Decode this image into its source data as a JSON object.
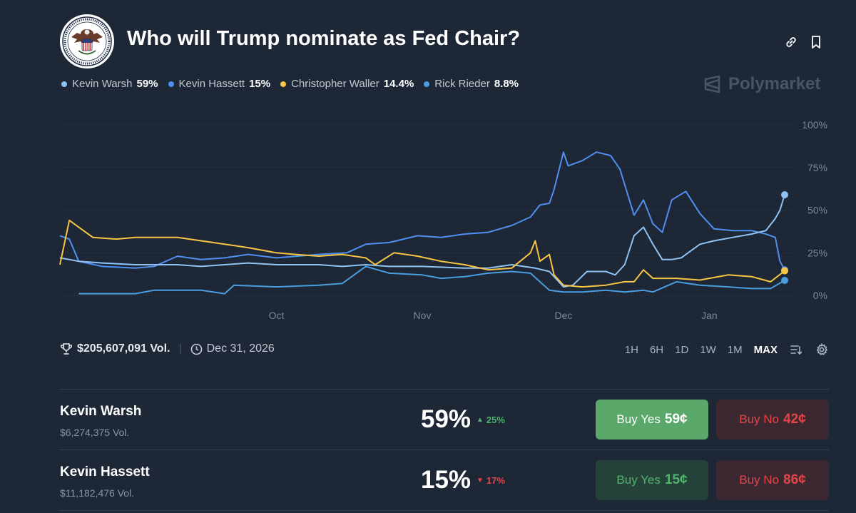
{
  "market": {
    "title": "Who will Trump nominate as Fed Chair?",
    "brand": "Polymarket",
    "volume": "$205,607,091 Vol.",
    "end_date": "Dec 31, 2026"
  },
  "legend": [
    {
      "name": "Kevin Warsh",
      "pct": "59%",
      "color": "#8fc3f5"
    },
    {
      "name": "Kevin Hassett",
      "pct": "15%",
      "color": "#4f8ff0"
    },
    {
      "name": "Christopher Waller",
      "pct": "14.4%",
      "color": "#f7c545"
    },
    {
      "name": "Rick Rieder",
      "pct": "8.8%",
      "color": "#4a9ee0"
    }
  ],
  "ranges": [
    "1H",
    "6H",
    "1D",
    "1W",
    "1M",
    "MAX"
  ],
  "active_range": "MAX",
  "outcomes": [
    {
      "name": "Kevin Warsh",
      "volume": "$6,274,375 Vol.",
      "pct": "59%",
      "change": "25%",
      "direction": "up",
      "yes_label": "Buy Yes",
      "yes_price": "59¢",
      "no_label": "Buy No",
      "no_price": "42¢"
    },
    {
      "name": "Kevin Hassett",
      "volume": "$11,182,476 Vol.",
      "pct": "15%",
      "change": "17%",
      "direction": "down",
      "yes_label": "Buy Yes",
      "yes_price": "15¢",
      "no_label": "Buy No",
      "no_price": "86¢"
    }
  ],
  "chart_data": {
    "type": "line",
    "ylim": [
      0,
      100
    ],
    "y_ticks": [
      "0%",
      "25%",
      "50%",
      "75%",
      "100%"
    ],
    "x_ticks": [
      {
        "label": "Oct",
        "date": "2025-10-01"
      },
      {
        "label": "Nov",
        "date": "2025-11-01"
      },
      {
        "label": "Dec",
        "date": "2025-12-01"
      },
      {
        "label": "Jan",
        "date": "2026-01-01"
      }
    ],
    "grid": true,
    "series": [
      {
        "name": "Kevin Hassett",
        "color": "#4f8ff0",
        "points": [
          [
            "2025-08-16",
            35
          ],
          [
            "2025-08-18",
            33
          ],
          [
            "2025-08-20",
            20
          ],
          [
            "2025-08-25",
            17
          ],
          [
            "2025-09-01",
            16
          ],
          [
            "2025-09-05",
            17
          ],
          [
            "2025-09-10",
            23
          ],
          [
            "2025-09-15",
            21
          ],
          [
            "2025-09-20",
            22
          ],
          [
            "2025-09-25",
            24
          ],
          [
            "2025-10-01",
            22
          ],
          [
            "2025-10-10",
            24
          ],
          [
            "2025-10-16",
            25
          ],
          [
            "2025-10-20",
            30
          ],
          [
            "2025-10-25",
            31
          ],
          [
            "2025-10-31",
            35
          ],
          [
            "2025-11-05",
            34
          ],
          [
            "2025-11-10",
            36
          ],
          [
            "2025-11-15",
            37
          ],
          [
            "2025-11-20",
            41
          ],
          [
            "2025-11-24",
            46
          ],
          [
            "2025-11-26",
            53
          ],
          [
            "2025-11-28",
            54
          ],
          [
            "2025-11-29",
            62
          ],
          [
            "2025-12-01",
            84
          ],
          [
            "2025-12-02",
            76
          ],
          [
            "2025-12-05",
            79
          ],
          [
            "2025-12-08",
            84
          ],
          [
            "2025-12-11",
            82
          ],
          [
            "2025-12-13",
            74
          ],
          [
            "2025-12-14",
            65
          ],
          [
            "2025-12-16",
            47
          ],
          [
            "2025-12-18",
            56
          ],
          [
            "2025-12-20",
            42
          ],
          [
            "2025-12-22",
            37
          ],
          [
            "2025-12-24",
            56
          ],
          [
            "2025-12-27",
            61
          ],
          [
            "2025-12-30",
            48
          ],
          [
            "2026-01-02",
            39
          ],
          [
            "2026-01-06",
            38
          ],
          [
            "2026-01-10",
            38
          ],
          [
            "2026-01-13",
            36
          ],
          [
            "2026-01-15",
            34
          ],
          [
            "2026-01-16",
            20
          ],
          [
            "2026-01-17",
            15
          ]
        ]
      },
      {
        "name": "Kevin Warsh",
        "color": "#8fc3f5",
        "points": [
          [
            "2025-08-16",
            22
          ],
          [
            "2025-08-20",
            20
          ],
          [
            "2025-08-25",
            19
          ],
          [
            "2025-09-01",
            18
          ],
          [
            "2025-09-10",
            18
          ],
          [
            "2025-09-15",
            17
          ],
          [
            "2025-09-20",
            18
          ],
          [
            "2025-09-25",
            19
          ],
          [
            "2025-10-01",
            18
          ],
          [
            "2025-10-10",
            18
          ],
          [
            "2025-10-15",
            17
          ],
          [
            "2025-10-20",
            18
          ],
          [
            "2025-10-25",
            17
          ],
          [
            "2025-11-01",
            17
          ],
          [
            "2025-11-10",
            16
          ],
          [
            "2025-11-15",
            16
          ],
          [
            "2025-11-20",
            18
          ],
          [
            "2025-11-25",
            16
          ],
          [
            "2025-11-28",
            14
          ],
          [
            "2025-12-01",
            5
          ],
          [
            "2025-12-03",
            6
          ],
          [
            "2025-12-06",
            14
          ],
          [
            "2025-12-10",
            14
          ],
          [
            "2025-12-12",
            12
          ],
          [
            "2025-12-14",
            18
          ],
          [
            "2025-12-16",
            35
          ],
          [
            "2025-12-18",
            40
          ],
          [
            "2025-12-20",
            30
          ],
          [
            "2025-12-22",
            21
          ],
          [
            "2025-12-24",
            21
          ],
          [
            "2025-12-26",
            22
          ],
          [
            "2025-12-30",
            30
          ],
          [
            "2026-01-02",
            32
          ],
          [
            "2026-01-06",
            34
          ],
          [
            "2026-01-10",
            36
          ],
          [
            "2026-01-13",
            38
          ],
          [
            "2026-01-15",
            45
          ],
          [
            "2026-01-16",
            50
          ],
          [
            "2026-01-17",
            59
          ]
        ]
      },
      {
        "name": "Christopher Waller",
        "color": "#f7c545",
        "points": [
          [
            "2025-08-16",
            18
          ],
          [
            "2025-08-18",
            44
          ],
          [
            "2025-08-20",
            40
          ],
          [
            "2025-08-23",
            34
          ],
          [
            "2025-08-28",
            33
          ],
          [
            "2025-09-01",
            34
          ],
          [
            "2025-09-05",
            34
          ],
          [
            "2025-09-10",
            34
          ],
          [
            "2025-09-15",
            32
          ],
          [
            "2025-09-20",
            30
          ],
          [
            "2025-09-25",
            28
          ],
          [
            "2025-10-01",
            25
          ],
          [
            "2025-10-05",
            24
          ],
          [
            "2025-10-10",
            23
          ],
          [
            "2025-10-15",
            24
          ],
          [
            "2025-10-20",
            22
          ],
          [
            "2025-10-22",
            18
          ],
          [
            "2025-10-26",
            25
          ],
          [
            "2025-10-31",
            23
          ],
          [
            "2025-11-05",
            20
          ],
          [
            "2025-11-10",
            18
          ],
          [
            "2025-11-15",
            15
          ],
          [
            "2025-11-20",
            16
          ],
          [
            "2025-11-24",
            25
          ],
          [
            "2025-11-25",
            32
          ],
          [
            "2025-11-26",
            20
          ],
          [
            "2025-11-28",
            24
          ],
          [
            "2025-11-29",
            12
          ],
          [
            "2025-12-01",
            6
          ],
          [
            "2025-12-05",
            5
          ],
          [
            "2025-12-10",
            6
          ],
          [
            "2025-12-14",
            8
          ],
          [
            "2025-12-16",
            8
          ],
          [
            "2025-12-18",
            15
          ],
          [
            "2025-12-20",
            10
          ],
          [
            "2025-12-25",
            10
          ],
          [
            "2025-12-30",
            9
          ],
          [
            "2026-01-05",
            12
          ],
          [
            "2026-01-10",
            11
          ],
          [
            "2026-01-14",
            8
          ],
          [
            "2026-01-17",
            14.4
          ]
        ]
      },
      {
        "name": "Rick Rieder",
        "color": "#4a9ee0",
        "points": [
          [
            "2025-08-20",
            1
          ],
          [
            "2025-09-01",
            1
          ],
          [
            "2025-09-05",
            3
          ],
          [
            "2025-09-15",
            3
          ],
          [
            "2025-09-20",
            1
          ],
          [
            "2025-09-22",
            6
          ],
          [
            "2025-10-01",
            5
          ],
          [
            "2025-10-10",
            6
          ],
          [
            "2025-10-15",
            7
          ],
          [
            "2025-10-20",
            17
          ],
          [
            "2025-10-25",
            13
          ],
          [
            "2025-11-01",
            12
          ],
          [
            "2025-11-05",
            10
          ],
          [
            "2025-11-10",
            11
          ],
          [
            "2025-11-15",
            13
          ],
          [
            "2025-11-20",
            14
          ],
          [
            "2025-11-24",
            13
          ],
          [
            "2025-11-26",
            8
          ],
          [
            "2025-11-28",
            3
          ],
          [
            "2025-12-01",
            2
          ],
          [
            "2025-12-05",
            2
          ],
          [
            "2025-12-10",
            3
          ],
          [
            "2025-12-14",
            2
          ],
          [
            "2025-12-18",
            3
          ],
          [
            "2025-12-20",
            2
          ],
          [
            "2025-12-25",
            8
          ],
          [
            "2025-12-30",
            6
          ],
          [
            "2026-01-05",
            5
          ],
          [
            "2026-01-10",
            4
          ],
          [
            "2026-01-14",
            4
          ],
          [
            "2026-01-17",
            8.8
          ]
        ]
      }
    ]
  }
}
